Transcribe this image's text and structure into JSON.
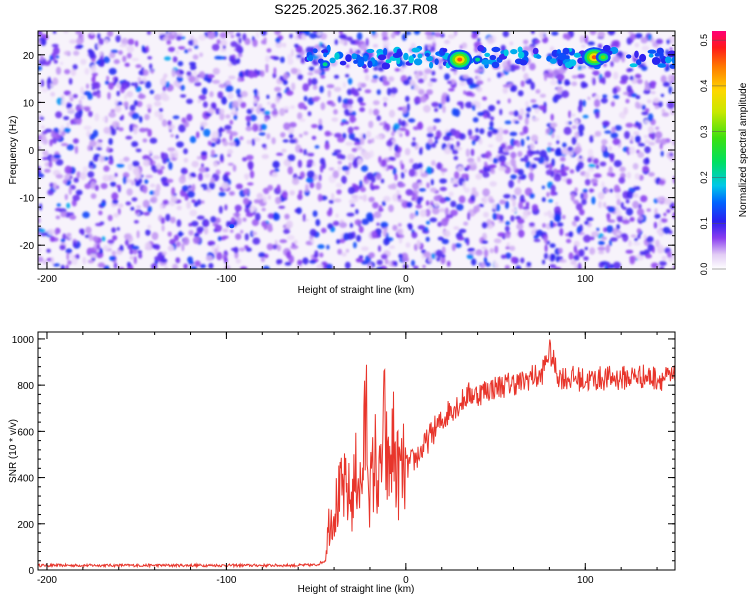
{
  "title": "S225.2025.362.16.37.R08",
  "colors": {
    "snr_line": "#e8352b",
    "frame": "#000000",
    "background": "#ffffff"
  },
  "chart_data": [
    {
      "type": "heatmap",
      "xlabel": "Height of straight line (km)",
      "ylabel": "Frequency (Hz)",
      "xlim": [
        -205,
        150
      ],
      "ylim": [
        -25,
        25
      ],
      "x_ticks": [
        -200,
        -100,
        0,
        100
      ],
      "x_tick_labels": [
        "-200",
        "-100",
        "0",
        "100"
      ],
      "y_ticks": [
        20,
        10,
        0,
        -10,
        -20
      ],
      "y_tick_labels": [
        "20",
        "10",
        "0",
        "-10",
        "-20"
      ],
      "colorbar": {
        "label": "Normalized spectral amplitude",
        "range": [
          0,
          0.52
        ],
        "ticks": [
          0,
          0.1,
          0.2,
          0.3,
          0.4,
          0.5
        ],
        "tick_labels": [
          "0.0",
          "0.1",
          "0.2",
          "0.3",
          "0.4",
          "0.5"
        ],
        "colormap": "rainbow-white"
      },
      "features": [
        {
          "x": 30,
          "y": 19,
          "amplitude": 0.47
        },
        {
          "x": 105,
          "y": 19.5,
          "amplitude": 0.5
        },
        {
          "x": 110,
          "y": 19.5,
          "amplitude": 0.33
        },
        {
          "x": -45,
          "y": 18,
          "amplitude": 0.22
        },
        {
          "x": -28,
          "y": 18.5,
          "amplitude": 0.2
        },
        {
          "x": 12,
          "y": 20,
          "amplitude": 0.18
        },
        {
          "x": 40,
          "y": 19,
          "amplitude": 0.22
        },
        {
          "x": 90,
          "y": 19.5,
          "amplitude": 0.16
        },
        {
          "x": 140,
          "y": 20,
          "amplitude": 0.15
        },
        {
          "x": -97,
          "y": -16,
          "amplitude": 0.14
        }
      ],
      "grid": false
    },
    {
      "type": "line",
      "xlabel": "Height of straight line (km)",
      "ylabel": "SNR (10 * v/v)",
      "xlim": [
        -205,
        150
      ],
      "ylim": [
        0,
        1030
      ],
      "x_ticks": [
        -200,
        -100,
        0,
        100
      ],
      "x_tick_labels": [
        "-200",
        "-100",
        "0",
        "100"
      ],
      "y_ticks": [
        0,
        200,
        400,
        600,
        800,
        1000
      ],
      "y_tick_labels": [
        "0",
        "200",
        "400",
        "600",
        "800",
        "1000"
      ],
      "series": [
        {
          "color": "#e8352b",
          "x": [
            -205,
            -180,
            -150,
            -120,
            -90,
            -60,
            -50,
            -45,
            -43,
            -40,
            -35,
            -30,
            -27,
            -25,
            -22,
            -20,
            -17,
            -15,
            -12,
            -10,
            -7,
            -5,
            -2,
            0,
            5,
            10,
            15,
            20,
            25,
            30,
            35,
            40,
            45,
            50,
            55,
            60,
            65,
            70,
            75,
            80,
            85,
            90,
            95,
            100,
            110,
            120,
            130,
            140,
            150
          ],
          "values": [
            20,
            20,
            20,
            20,
            20,
            20,
            22,
            40,
            200,
            260,
            350,
            300,
            450,
            330,
            680,
            330,
            480,
            340,
            620,
            400,
            550,
            420,
            420,
            440,
            480,
            530,
            600,
            640,
            700,
            720,
            760,
            760,
            780,
            790,
            800,
            810,
            810,
            840,
            830,
            950,
            840,
            830,
            830,
            820,
            830,
            830,
            840,
            830,
            830
          ]
        }
      ],
      "grid": false
    }
  ]
}
